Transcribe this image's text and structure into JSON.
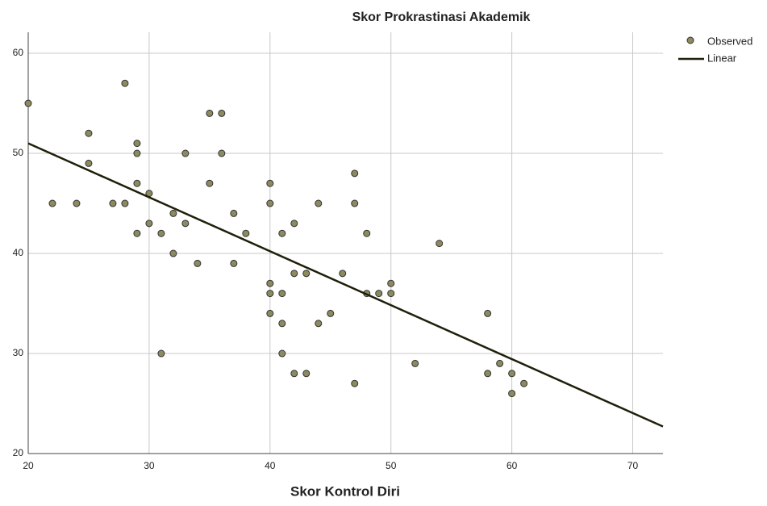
{
  "chart_data": {
    "type": "scatter",
    "title": "Skor Prokrastinasi Akademik",
    "x_label": "Skor Kontrol Diri",
    "xlim": [
      20,
      72.5
    ],
    "ylim": [
      20,
      62.1
    ],
    "xticks": [
      20,
      30,
      40,
      50,
      60,
      70
    ],
    "yticks": [
      20,
      30,
      40,
      50,
      60
    ],
    "grid": true,
    "legend": "top-right",
    "series": [
      {
        "name": "Observed",
        "color": "#8c8a5e",
        "x": [
          20,
          22,
          24,
          25,
          25,
          27,
          28,
          28,
          29,
          29,
          29,
          29,
          30,
          30,
          31,
          31,
          32,
          32,
          33,
          33,
          34,
          35,
          35,
          36,
          36,
          37,
          37,
          38,
          40,
          40,
          40,
          40,
          40,
          41,
          41,
          41,
          41,
          42,
          42,
          42,
          43,
          43,
          44,
          44,
          45,
          46,
          47,
          47,
          47,
          48,
          48,
          49,
          50,
          50,
          52,
          54,
          58,
          58,
          59,
          60,
          60,
          61
        ],
        "values": [
          55,
          45,
          45,
          52,
          49,
          45,
          57,
          45,
          51,
          50,
          47,
          42,
          46,
          43,
          42,
          30,
          44,
          40,
          50,
          43,
          39,
          54,
          47,
          54,
          50,
          44,
          39,
          42,
          47,
          45,
          37,
          36,
          34,
          42,
          36,
          33,
          30,
          43,
          38,
          28,
          38,
          28,
          45,
          33,
          34,
          38,
          48,
          45,
          27,
          42,
          36,
          36,
          37,
          36,
          29,
          41,
          34,
          28,
          29,
          28,
          26,
          27
        ]
      },
      {
        "name": "Linear",
        "type": "line",
        "color": "#1f1f0a",
        "x": [
          20,
          72.5
        ],
        "values": [
          51,
          22.7
        ]
      }
    ]
  }
}
